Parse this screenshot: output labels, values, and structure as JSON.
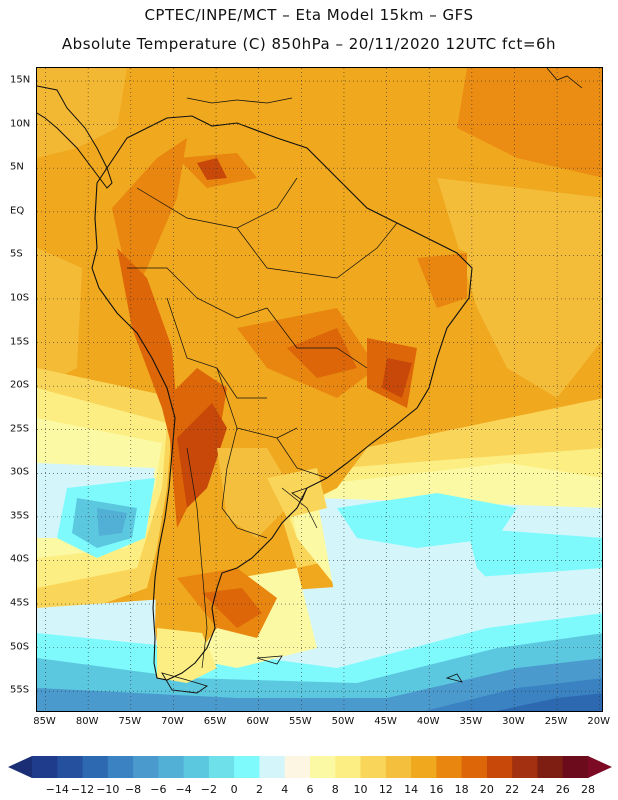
{
  "header": {
    "line1": "CPTEC/INPE/MCT –  Eta Model 15km – GFS",
    "line2": "Absolute Temperature (C) 850hPa – 20/11/2020 12UTC fct=6h"
  },
  "map": {
    "lat_labels": [
      "15N",
      "10N",
      "5N",
      "EQ",
      "5S",
      "10S",
      "15S",
      "20S",
      "25S",
      "30S",
      "35S",
      "40S",
      "45S",
      "50S",
      "55S"
    ],
    "lat_values": [
      15,
      10,
      5,
      0,
      -5,
      -10,
      -15,
      -20,
      -25,
      -30,
      -35,
      -40,
      -45,
      -50,
      -55
    ],
    "lon_labels": [
      "85W",
      "80W",
      "75W",
      "70W",
      "65W",
      "60W",
      "55W",
      "50W",
      "45W",
      "40W",
      "35W",
      "30W",
      "25W",
      "20W"
    ],
    "lon_values": [
      -85,
      -80,
      -75,
      -70,
      -65,
      -60,
      -55,
      -50,
      -45,
      -40,
      -35,
      -30,
      -25,
      -20
    ],
    "extent": {
      "lon_min": -86,
      "lon_max": -19.5,
      "lat_min": -57.5,
      "lat_max": 16.5
    },
    "graticule": "dotted"
  },
  "legend": {
    "labels": [
      "-14",
      "-12",
      "-10",
      "-8",
      "-6",
      "-4",
      "-2",
      "0",
      "2",
      "4",
      "6",
      "8",
      "10",
      "12",
      "14",
      "16",
      "18",
      "20",
      "22",
      "24",
      "26",
      "28"
    ],
    "colors": [
      "#1f3b8c",
      "#25509e",
      "#2d69b0",
      "#3a82c2",
      "#4a9acd",
      "#52afd6",
      "#5bc8e0",
      "#6ee0ea",
      "#7ffafc",
      "#d4f6fb",
      "#fdf6e3",
      "#fcf9a4",
      "#fcee82",
      "#f9d55a",
      "#f4bf3c",
      "#f0a81e",
      "#e8860f",
      "#dd6608",
      "#c8480a",
      "#a33010",
      "#7e1d12",
      "#6b0b1c"
    ],
    "arrow_left_color": "#1a2e75",
    "arrow_right_color": "#7d0a25"
  }
}
